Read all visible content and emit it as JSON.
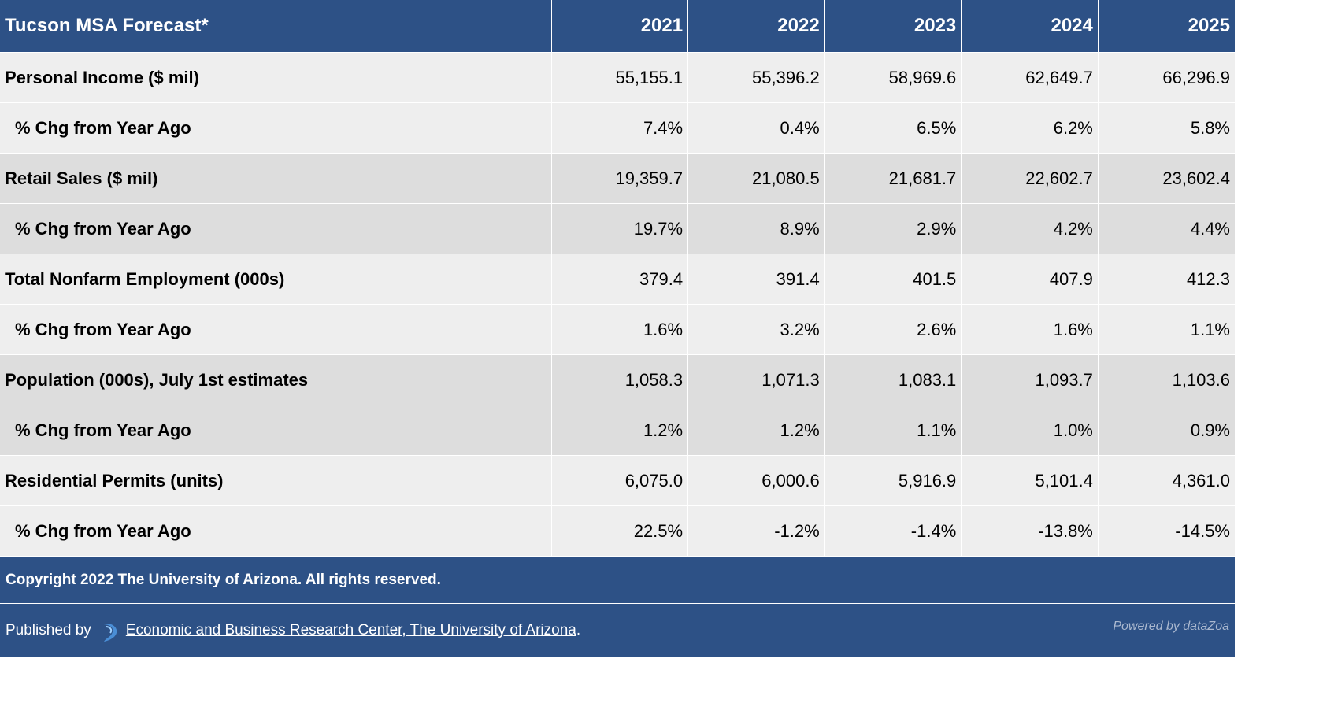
{
  "table": {
    "title": "Tucson MSA Forecast*",
    "years": [
      "2021",
      "2022",
      "2023",
      "2024",
      "2025"
    ],
    "rows": [
      {
        "label": "Personal Income ($ mil)",
        "values": [
          "55,155.1",
          "55,396.2",
          "58,969.6",
          "62,649.7",
          "66,296.9"
        ]
      },
      {
        "label": "% Chg from Year Ago",
        "values": [
          "7.4%",
          "0.4%",
          "6.5%",
          "6.2%",
          "5.8%"
        ]
      },
      {
        "label": "Retail Sales ($ mil)",
        "values": [
          "19,359.7",
          "21,080.5",
          "21,681.7",
          "22,602.7",
          "23,602.4"
        ]
      },
      {
        "label": "% Chg from Year Ago",
        "values": [
          "19.7%",
          "8.9%",
          "2.9%",
          "4.2%",
          "4.4%"
        ]
      },
      {
        "label": "Total Nonfarm Employment (000s)",
        "values": [
          "379.4",
          "391.4",
          "401.5",
          "407.9",
          "412.3"
        ]
      },
      {
        "label": "% Chg from Year Ago",
        "values": [
          "1.6%",
          "3.2%",
          "2.6%",
          "1.6%",
          "1.1%"
        ]
      },
      {
        "label": "Population (000s), July 1st estimates",
        "values": [
          "1,058.3",
          "1,071.3",
          "1,083.1",
          "1,093.7",
          "1,103.6"
        ]
      },
      {
        "label": "% Chg from Year Ago",
        "values": [
          "1.2%",
          "1.2%",
          "1.1%",
          "1.0%",
          "0.9%"
        ]
      },
      {
        "label": "Residential Permits (units)",
        "values": [
          "6,075.0",
          "6,000.6",
          "5,916.9",
          "5,101.4",
          "4,361.0"
        ]
      },
      {
        "label": "% Chg from Year Ago",
        "values": [
          "22.5%",
          "-1.2%",
          "-1.4%",
          "-13.8%",
          "-14.5%"
        ]
      }
    ]
  },
  "footer": {
    "copyright": "Copyright 2022 The University of Arizona. All rights reserved.",
    "published_by": "Published by",
    "publisher_link": "Economic and Business Research Center, The University of Arizona",
    "publisher_suffix": ".",
    "powered_by": "Powered by dataZoa",
    "logo_icon": "datazoa-swoosh-icon"
  },
  "colors": {
    "header_bg": "#2d5186",
    "row_light": "#eeeeee",
    "row_dark": "#dddddd"
  }
}
